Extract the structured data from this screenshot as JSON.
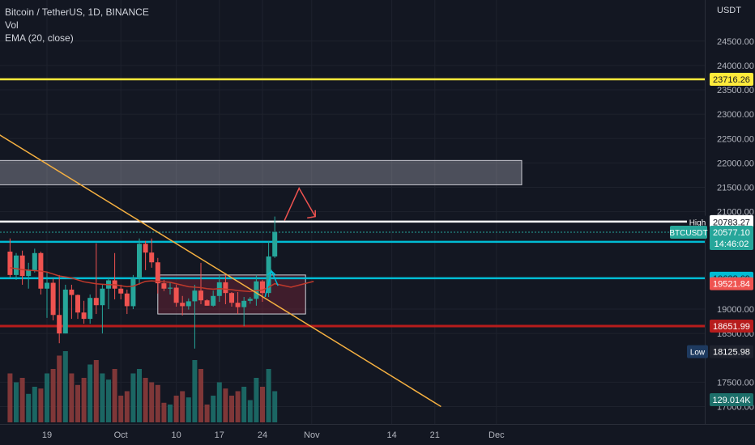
{
  "legend": {
    "symbol": "Bitcoin / TetherUS, 1D, BINANCE",
    "volume": "Vol",
    "ema": "EMA (20, close)"
  },
  "price_axis": {
    "currency": "USDT",
    "ticks": [
      "24500.00",
      "24000.00",
      "23500.00",
      "23000.00",
      "22500.00",
      "22000.00",
      "21500.00",
      "21000.00",
      "19000.00",
      "18500.00",
      "17500.00",
      "17000.00"
    ]
  },
  "time_axis": {
    "ticks": [
      "19",
      "Oct",
      "10",
      "17",
      "24",
      "Nov",
      "14",
      "21",
      "Dec"
    ]
  },
  "price_labels": {
    "level_yellow": "23716.26",
    "level_white_top": "20796.16",
    "high_tag": "High",
    "high_value": "20783.27",
    "symbol_tag": "BTCUSDT",
    "last_price": "20577.10",
    "countdown": "14:46:02",
    "level_cyan_upper": "20381.70",
    "level_cyan_lower": "19632.69",
    "ema_value": "19521.84",
    "level_red": "18651.99",
    "low_tag": "Low",
    "low_value": "18125.98",
    "volume_value": "129.014K"
  },
  "colors": {
    "background": "#131722",
    "up": "#26a69a",
    "down": "#ef5350",
    "yellow_line": "#ffeb3b",
    "cyan_line": "#00bcd4",
    "red_line": "#b71c1c",
    "trendline": "#f5b041",
    "ema": "#c0392b"
  },
  "chart_data": {
    "type": "candlestick",
    "symbol": "BTCUSDT",
    "interval": "1D",
    "exchange": "BINANCE",
    "dates": [
      "2022-09-13",
      "2022-09-14",
      "2022-09-15",
      "2022-09-16",
      "2022-09-17",
      "2022-09-18",
      "2022-09-19",
      "2022-09-20",
      "2022-09-21",
      "2022-09-22",
      "2022-09-23",
      "2022-09-24",
      "2022-09-25",
      "2022-09-26",
      "2022-09-27",
      "2022-09-28",
      "2022-09-29",
      "2022-09-30",
      "2022-10-01",
      "2022-10-02",
      "2022-10-03",
      "2022-10-04",
      "2022-10-05",
      "2022-10-06",
      "2022-10-07",
      "2022-10-08",
      "2022-10-09",
      "2022-10-10",
      "2022-10-11",
      "2022-10-12",
      "2022-10-13",
      "2022-10-14",
      "2022-10-15",
      "2022-10-16",
      "2022-10-17",
      "2022-10-18",
      "2022-10-19",
      "2022-10-20",
      "2022-10-21",
      "2022-10-22",
      "2022-10-23",
      "2022-10-24",
      "2022-10-25",
      "2022-10-26"
    ],
    "ohlc": [
      [
        20180,
        20450,
        19650,
        19700
      ],
      [
        19700,
        20150,
        19600,
        20100
      ],
      [
        20100,
        20200,
        19500,
        19680
      ],
      [
        19680,
        19950,
        19420,
        19800
      ],
      [
        19800,
        20240,
        19750,
        20150
      ],
      [
        20150,
        20180,
        19300,
        19420
      ],
      [
        19420,
        19750,
        18820,
        19540
      ],
      [
        19540,
        19630,
        18770,
        18880
      ],
      [
        18880,
        19700,
        18300,
        18500
      ],
      [
        18500,
        19500,
        18500,
        19400
      ],
      [
        19400,
        19500,
        18800,
        19290
      ],
      [
        19290,
        19300,
        18800,
        18930
      ],
      [
        18930,
        19170,
        18700,
        18800
      ],
      [
        18800,
        19300,
        18700,
        19230
      ],
      [
        19230,
        20350,
        18900,
        19080
      ],
      [
        19080,
        19500,
        18500,
        19420
      ],
      [
        19420,
        19650,
        19000,
        19590
      ],
      [
        19590,
        20150,
        19200,
        19420
      ],
      [
        19420,
        19500,
        19200,
        19320
      ],
      [
        19320,
        19400,
        18900,
        19060
      ],
      [
        19060,
        19700,
        19000,
        19630
      ],
      [
        19630,
        20450,
        19500,
        20340
      ],
      [
        20340,
        20400,
        19800,
        20160
      ],
      [
        20160,
        20450,
        19850,
        19960
      ],
      [
        19960,
        20050,
        19320,
        19530
      ],
      [
        19530,
        19600,
        19370,
        19420
      ],
      [
        19420,
        19550,
        19300,
        19440
      ],
      [
        19440,
        19500,
        19050,
        19130
      ],
      [
        19130,
        19270,
        18870,
        19060
      ],
      [
        19060,
        19220,
        18990,
        19160
      ],
      [
        19160,
        19500,
        18190,
        19380
      ],
      [
        19380,
        19950,
        19100,
        19180
      ],
      [
        19180,
        19200,
        19070,
        19070
      ],
      [
        19070,
        19380,
        19050,
        19270
      ],
      [
        19270,
        19700,
        19150,
        19550
      ],
      [
        19550,
        19700,
        19100,
        19330
      ],
      [
        19330,
        19350,
        19050,
        19130
      ],
      [
        19130,
        19350,
        18900,
        19040
      ],
      [
        19040,
        19250,
        18650,
        19170
      ],
      [
        19170,
        19250,
        19110,
        19210
      ],
      [
        19210,
        19700,
        19070,
        19570
      ],
      [
        19570,
        19600,
        19150,
        19330
      ],
      [
        19330,
        20400,
        19250,
        20080
      ],
      [
        20080,
        20900,
        20050,
        20580
      ]
    ],
    "volume_relative": [
      0.55,
      0.45,
      0.5,
      0.32,
      0.4,
      0.38,
      0.55,
      0.6,
      0.75,
      0.8,
      0.55,
      0.42,
      0.5,
      0.65,
      0.7,
      0.55,
      0.48,
      0.6,
      0.3,
      0.35,
      0.55,
      0.6,
      0.5,
      0.45,
      0.42,
      0.22,
      0.2,
      0.3,
      0.35,
      0.28,
      0.7,
      0.6,
      0.2,
      0.3,
      0.45,
      0.38,
      0.3,
      0.35,
      0.4,
      0.25,
      0.5,
      0.4,
      0.6,
      0.35
    ],
    "ema20": [
      19850,
      19830,
      19810,
      19800,
      19790,
      19780,
      19760,
      19720,
      19680,
      19660,
      19640,
      19600,
      19560,
      19540,
      19520,
      19510,
      19500,
      19500,
      19480,
      19460,
      19470,
      19520,
      19570,
      19580,
      19570,
      19560,
      19550,
      19520,
      19490,
      19460,
      19450,
      19440,
      19420,
      19410,
      19420,
      19410,
      19400,
      19380,
      19370,
      19360,
      19380,
      19390,
      19450,
      19522
    ],
    "ema_last": 19521.84,
    "y_range": [
      16900,
      24950
    ],
    "horizontal_levels": [
      23716.26,
      20796.16,
      20381.7,
      19632.69,
      18651.99
    ],
    "high": 20783.27,
    "low": 18125.98,
    "last_price": 20577.1,
    "resistance_zone": [
      21550,
      22050
    ],
    "consolidation_box": [
      18900,
      19700
    ],
    "trendline": [
      [
        "2022-09-11",
        22600
      ],
      [
        "2022-11-22",
        17000
      ]
    ]
  }
}
